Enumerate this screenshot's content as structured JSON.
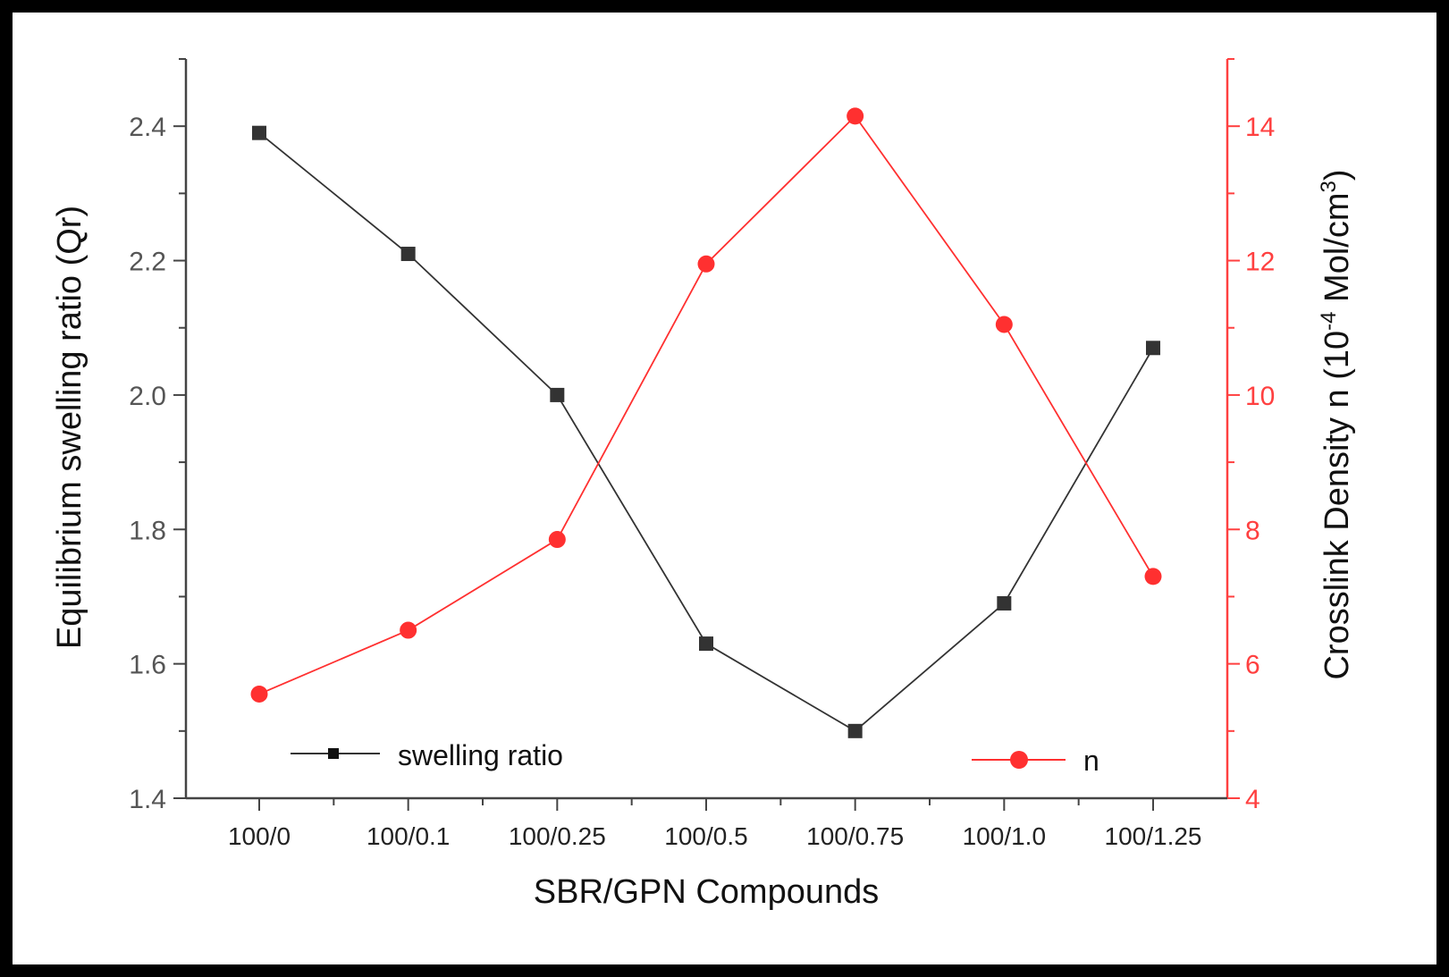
{
  "chart_data": {
    "type": "line",
    "title": "",
    "categories": [
      "100/0",
      "100/0.1",
      "100/0.25",
      "100/0.5",
      "100/0.75",
      "100/1.0",
      "100/1.25"
    ],
    "xlabel": "SBR/GPN Compounds",
    "ylabel_left": "Equilibrium swelling ratio (Qr)",
    "ylabel_right": {
      "prefix": "Crosslink Density n (10",
      "exp": "-4",
      "mid": " Mol/cm",
      "exp2": "3",
      "suffix": ")"
    },
    "ylim_left": [
      1.4,
      2.5
    ],
    "yticks_left": [
      "1.4",
      "1.6",
      "1.8",
      "2.0",
      "2.2",
      "2.4"
    ],
    "ylim_right": [
      4,
      15
    ],
    "yticks_right": [
      "4",
      "6",
      "8",
      "10",
      "12",
      "14"
    ],
    "series": [
      {
        "name": "swelling ratio",
        "axis": "left",
        "color": "#333333",
        "marker": "square",
        "values": [
          2.39,
          2.21,
          2.0,
          1.63,
          1.5,
          1.69,
          2.07
        ]
      },
      {
        "name": "n",
        "axis": "right",
        "color": "#ff3030",
        "marker": "circle",
        "values": [
          5.55,
          6.5,
          7.85,
          11.95,
          14.15,
          11.05,
          7.3
        ]
      }
    ],
    "legend": {
      "swelling_label": "swelling ratio",
      "n_label": "n"
    }
  }
}
